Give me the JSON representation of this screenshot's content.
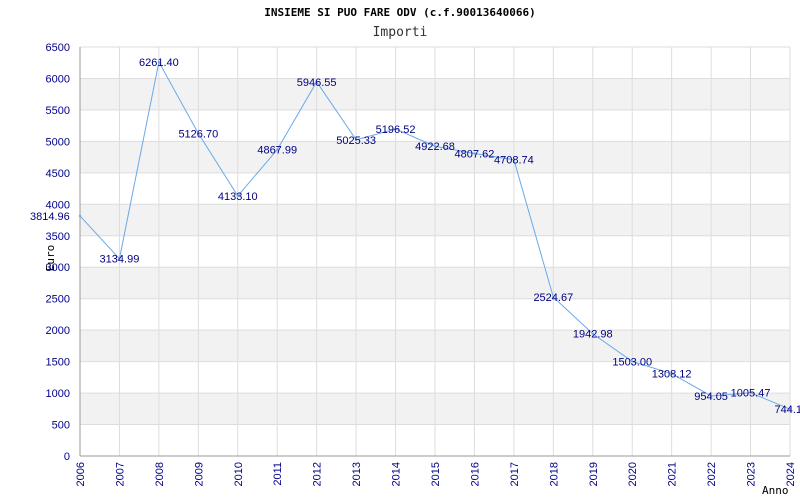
{
  "chart_data": {
    "type": "line",
    "title": "INSIEME SI PUO FARE ODV (c.f.90013640066)",
    "subtitle": "Importi",
    "xlabel": "Anno",
    "ylabel": "Euro",
    "ylim": [
      0,
      6500
    ],
    "ytick_step": 500,
    "grid": true,
    "categories": [
      "2006",
      "2007",
      "2008",
      "2009",
      "2010",
      "2011",
      "2012",
      "2013",
      "2014",
      "2015",
      "2016",
      "2017",
      "2018",
      "2019",
      "2020",
      "2021",
      "2022",
      "2023",
      "2024"
    ],
    "series": [
      {
        "name": "Importi",
        "values": [
          3814.96,
          3134.99,
          6261.4,
          5126.7,
          4133.1,
          4867.99,
          5946.55,
          5025.33,
          5196.52,
          4922.68,
          4807.62,
          4708.74,
          2524.67,
          1942.98,
          1503.0,
          1308.12,
          954.05,
          1005.47,
          744.1
        ],
        "labels": [
          "3814.96",
          "3134.99",
          "6261.40",
          "5126.70",
          "4133.10",
          "4867.99",
          "5946.55",
          "5025.33",
          "5196.52",
          "4922.68",
          "4807.62",
          "4708.74",
          "2524.67",
          "1942.98",
          "1503.00",
          "1308.12",
          "954.05",
          "1005.47",
          "744.1"
        ]
      }
    ],
    "colors": {
      "line": "#6aa9e8",
      "band": "#f2f2f2",
      "gridline": "#dddddd",
      "tick_text": "#00008b",
      "label_text": "#000080"
    }
  }
}
